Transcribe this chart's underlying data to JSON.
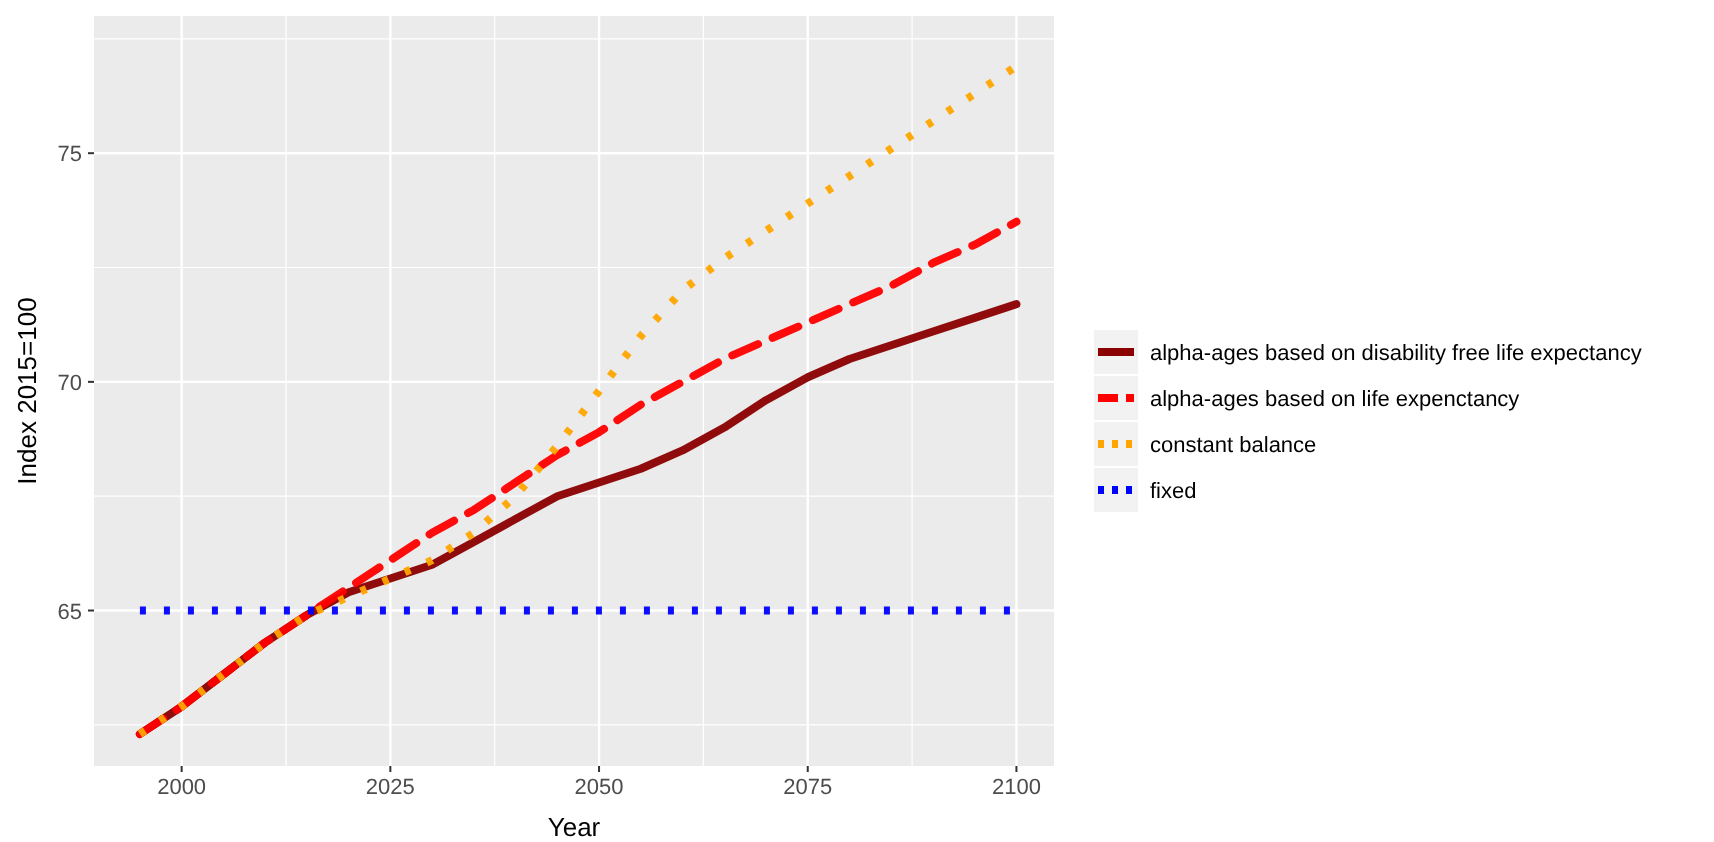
{
  "chart_data": {
    "type": "line",
    "xlabel": "Year",
    "ylabel": "Index 2015=100",
    "x": [
      1995,
      2000,
      2005,
      2010,
      2015,
      2020,
      2025,
      2030,
      2035,
      2040,
      2045,
      2050,
      2055,
      2060,
      2065,
      2070,
      2075,
      2080,
      2085,
      2090,
      2095,
      2100
    ],
    "series": [
      {
        "name": "alpha-ages based on disability free life expectancy",
        "color": "#8b0000",
        "line_style": "solid",
        "values": [
          62.3,
          62.9,
          63.6,
          64.3,
          64.9,
          65.4,
          65.7,
          66.0,
          66.5,
          67.0,
          67.5,
          67.8,
          68.1,
          68.5,
          69.0,
          69.6,
          70.1,
          70.5,
          70.8,
          71.1,
          71.4,
          71.7
        ]
      },
      {
        "name": "alpha-ages based on life expenctancy",
        "color": "#ff0000",
        "line_style": "dashed",
        "values": [
          62.3,
          62.9,
          63.6,
          64.3,
          64.9,
          65.5,
          66.1,
          66.7,
          67.2,
          67.8,
          68.4,
          68.9,
          69.5,
          70.0,
          70.5,
          70.9,
          71.3,
          71.7,
          72.1,
          72.6,
          73.0,
          73.5
        ]
      },
      {
        "name": "constant balance",
        "color": "#ffa500",
        "line_style": "dotted",
        "values": [
          62.3,
          62.9,
          63.6,
          64.3,
          64.9,
          65.3,
          65.7,
          66.1,
          66.7,
          67.5,
          68.6,
          69.8,
          71.0,
          72.0,
          72.7,
          73.3,
          73.9,
          74.5,
          75.1,
          75.7,
          76.3,
          76.9
        ]
      },
      {
        "name": "fixed",
        "color": "#0000ff",
        "line_style": "dotted",
        "values": [
          65,
          65,
          65,
          65,
          65,
          65,
          65,
          65,
          65,
          65,
          65,
          65,
          65,
          65,
          65,
          65,
          65,
          65,
          65,
          65,
          65,
          65
        ]
      }
    ],
    "xlim": [
      1989.5,
      2104.5
    ],
    "xticks": [
      2000,
      2025,
      2050,
      2075,
      2100
    ],
    "ylim": [
      61.6,
      78.0
    ],
    "yticks": [
      65,
      70,
      75
    ],
    "grid": true,
    "legend": "right"
  }
}
